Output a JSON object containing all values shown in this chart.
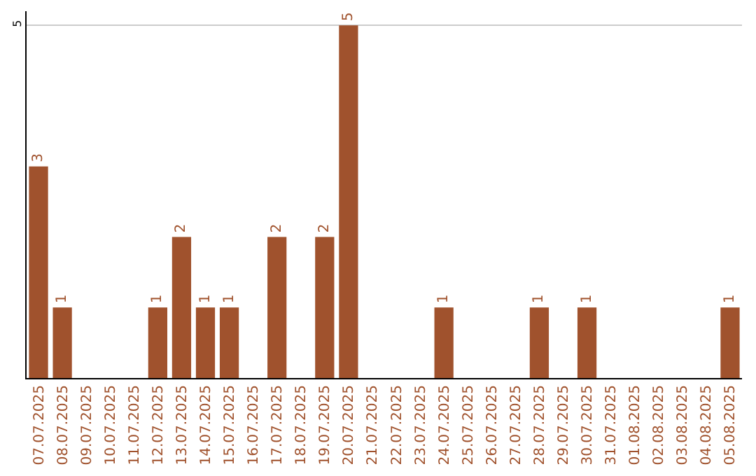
{
  "chart_data": {
    "type": "bar",
    "categories": [
      "07.07.2025",
      "08.07.2025",
      "09.07.2025",
      "10.07.2025",
      "11.07.2025",
      "12.07.2025",
      "13.07.2025",
      "14.07.2025",
      "15.07.2025",
      "16.07.2025",
      "17.07.2025",
      "18.07.2025",
      "19.07.2025",
      "20.07.2025",
      "21.07.2025",
      "22.07.2025",
      "23.07.2025",
      "24.07.2025",
      "25.07.2025",
      "26.07.2025",
      "27.07.2025",
      "28.07.2025",
      "29.07.2025",
      "30.07.2025",
      "31.07.2025",
      "01.08.2025",
      "02.08.2025",
      "03.08.2025",
      "04.08.2025",
      "05.08.2025"
    ],
    "values": [
      3,
      1,
      0,
      0,
      0,
      1,
      2,
      1,
      1,
      0,
      2,
      0,
      2,
      5,
      0,
      0,
      0,
      1,
      0,
      0,
      0,
      1,
      0,
      1,
      0,
      0,
      0,
      0,
      0,
      1
    ],
    "value_labels": [
      "3",
      "1",
      null,
      null,
      null,
      "1",
      "2",
      "1",
      "1",
      null,
      "2",
      null,
      "2",
      "5",
      null,
      null,
      null,
      "1",
      null,
      null,
      null,
      "1",
      null,
      "1",
      null,
      null,
      null,
      null,
      null,
      "1"
    ],
    "color": "#a0522d",
    "ylim": [
      0,
      5.2
    ],
    "yticks": [
      5
    ],
    "grid": "y",
    "legend": false
  }
}
